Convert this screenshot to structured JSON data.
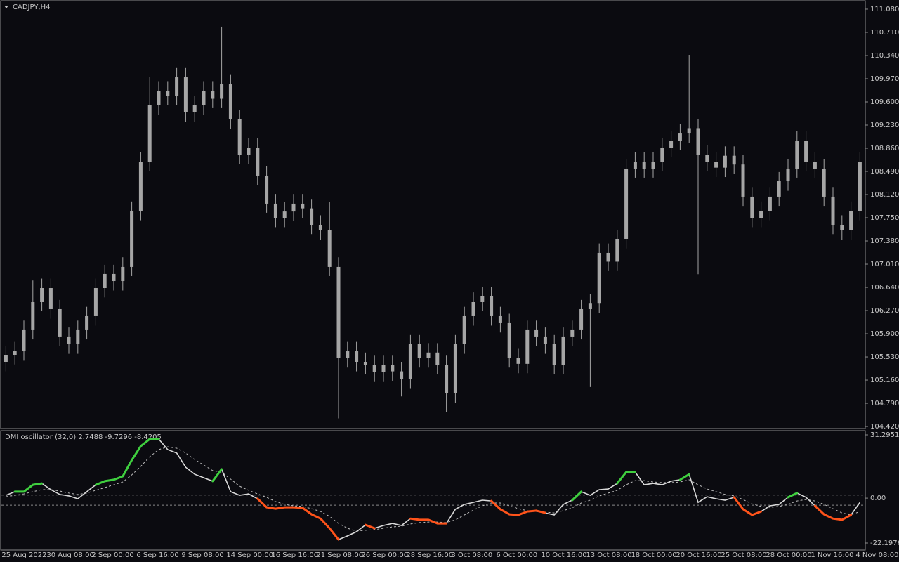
{
  "chart_data": [
    {
      "type": "candlestick",
      "title": "CADJPY,H4",
      "color": "#a6a6a6",
      "categories": [
        "25 Aug 2022",
        null,
        null,
        null,
        null,
        "30 Aug 08:00",
        null,
        null,
        null,
        null,
        "2 Sep 00:00",
        null,
        null,
        null,
        null,
        "6 Sep 16:00",
        null,
        null,
        null,
        null,
        "9 Sep 08:00",
        null,
        null,
        null,
        null,
        "14 Sep 00:00",
        null,
        null,
        null,
        null,
        "16 Sep 16:00",
        null,
        null,
        null,
        null,
        "21 Sep 08:00",
        null,
        null,
        null,
        null,
        "26 Sep 00:00",
        null,
        null,
        null,
        null,
        "28 Sep 16:00",
        null,
        null,
        null,
        null,
        "3 Oct 08:00",
        null,
        null,
        null,
        null,
        "6 Oct 00:00",
        null,
        null,
        null,
        null,
        "10 Oct 16:00",
        null,
        null,
        null,
        null,
        "13 Oct 08:00",
        null,
        null,
        null,
        null,
        "18 Oct 00:00",
        null,
        null,
        null,
        null,
        "20 Oct 16:00",
        null,
        null,
        null,
        null,
        "25 Oct 08:00",
        null,
        null,
        null,
        null,
        "28 Oct 00:00",
        null,
        null,
        null,
        null,
        "1 Nov 16:00",
        null,
        null,
        null,
        null,
        "4 Nov 08:00"
      ],
      "open": [
        105.45,
        105.564,
        105.62,
        105.957,
        106.405,
        106.629,
        106.293,
        105.845,
        105.733,
        105.957,
        106.181,
        106.629,
        106.854,
        106.741,
        106.966,
        107.862,
        108.647,
        109.544,
        109.768,
        109.7,
        109.992,
        109.432,
        109.544,
        109.768,
        109.65,
        109.88,
        109.32,
        108.759,
        108.871,
        108.423,
        107.975,
        107.75,
        107.85,
        107.975,
        107.9,
        107.638,
        107.55,
        106.966,
        105.508,
        105.62,
        105.45,
        105.396,
        105.284,
        105.396,
        105.3,
        105.172,
        105.733,
        105.508,
        105.6,
        105.4,
        104.948,
        105.733,
        106.181,
        106.405,
        106.5,
        106.181,
        106.069,
        105.508,
        105.42,
        105.957,
        105.845,
        105.733,
        105.396,
        105.845,
        105.957,
        106.293,
        106.38,
        107.19,
        107.05,
        107.414,
        108.535,
        108.647,
        108.535,
        108.647,
        108.871,
        108.983,
        109.095,
        109.18,
        108.759,
        108.647,
        108.55,
        108.74,
        108.6,
        108.087,
        107.75,
        107.862,
        108.087,
        108.333,
        108.535,
        108.983,
        108.647,
        108.535,
        108.087,
        107.638,
        107.549,
        107.862
      ],
      "high": [
        105.71,
        105.77,
        106.11,
        106.75,
        106.78,
        106.78,
        106.44,
        106.0,
        106.11,
        106.33,
        106.78,
        107.0,
        107.0,
        107.12,
        108.01,
        108.8,
        110.0,
        109.92,
        109.92,
        110.14,
        110.14,
        109.69,
        109.92,
        109.92,
        110.8,
        110.03,
        109.47,
        109.02,
        109.02,
        108.57,
        108.13,
        108.0,
        108.13,
        108.13,
        108.05,
        107.79,
        108.0,
        107.12,
        105.77,
        105.77,
        105.6,
        105.55,
        105.55,
        105.55,
        105.45,
        105.88,
        105.88,
        105.75,
        105.75,
        105.55,
        105.88,
        106.33,
        106.56,
        106.65,
        106.65,
        106.33,
        106.22,
        105.66,
        106.11,
        106.11,
        106.0,
        105.88,
        106.0,
        106.11,
        106.44,
        106.53,
        107.34,
        107.34,
        107.56,
        108.69,
        108.8,
        108.8,
        108.8,
        109.02,
        109.13,
        109.25,
        110.35,
        109.33,
        108.91,
        108.8,
        108.89,
        108.89,
        108.75,
        108.24,
        108.01,
        108.24,
        108.48,
        108.69,
        109.13,
        109.13,
        108.8,
        108.69,
        108.24,
        107.79,
        108.01,
        108.8
      ],
      "low": [
        105.3,
        105.41,
        105.47,
        105.81,
        106.26,
        106.14,
        105.7,
        105.58,
        105.58,
        105.81,
        106.03,
        106.48,
        106.59,
        106.59,
        106.82,
        107.71,
        108.5,
        109.39,
        109.55,
        109.55,
        109.28,
        109.28,
        109.39,
        109.5,
        109.5,
        109.17,
        108.61,
        108.61,
        108.27,
        107.83,
        107.6,
        107.6,
        107.7,
        107.75,
        107.49,
        107.4,
        106.82,
        104.55,
        105.36,
        105.3,
        105.25,
        105.13,
        105.13,
        105.15,
        104.9,
        105.02,
        105.36,
        105.36,
        105.25,
        104.65,
        104.8,
        105.58,
        106.03,
        106.26,
        106.03,
        105.92,
        105.36,
        105.27,
        105.27,
        105.7,
        105.58,
        105.25,
        105.25,
        105.7,
        105.81,
        105.05,
        106.23,
        106.9,
        106.9,
        107.26,
        108.39,
        108.39,
        108.39,
        108.5,
        108.72,
        108.83,
        108.95,
        106.85,
        108.5,
        108.4,
        108.4,
        108.45,
        107.94,
        107.6,
        107.6,
        107.71,
        107.94,
        108.18,
        108.39,
        108.5,
        108.39,
        107.94,
        107.49,
        107.4,
        107.4,
        107.71
      ],
      "close": [
        105.564,
        105.62,
        105.957,
        106.405,
        106.629,
        106.293,
        105.845,
        105.733,
        105.957,
        106.181,
        106.629,
        106.854,
        106.741,
        106.966,
        107.862,
        108.647,
        109.544,
        109.768,
        109.7,
        109.992,
        109.432,
        109.544,
        109.768,
        109.65,
        109.88,
        109.32,
        108.759,
        108.871,
        108.423,
        107.975,
        107.75,
        107.85,
        107.975,
        107.9,
        107.638,
        107.55,
        106.966,
        105.508,
        105.62,
        105.45,
        105.396,
        105.284,
        105.396,
        105.3,
        105.172,
        105.733,
        105.508,
        105.6,
        105.4,
        104.948,
        105.733,
        106.181,
        106.405,
        106.5,
        106.181,
        106.069,
        105.508,
        105.42,
        105.957,
        105.845,
        105.733,
        105.396,
        105.845,
        105.957,
        106.293,
        106.38,
        107.19,
        107.05,
        107.414,
        108.535,
        108.647,
        108.535,
        108.647,
        108.871,
        108.983,
        109.095,
        109.18,
        108.759,
        108.647,
        108.55,
        108.74,
        108.6,
        108.087,
        107.75,
        107.862,
        108.087,
        108.333,
        108.535,
        108.983,
        108.647,
        108.535,
        108.087,
        107.638,
        107.549,
        107.862,
        108.647
      ],
      "ylim": [
        104.387,
        111.203
      ],
      "yticks": [
        {
          "value": 104.42,
          "label": "104.420"
        },
        {
          "value": 104.79,
          "label": "104.790"
        },
        {
          "value": 105.16,
          "label": "105.160"
        },
        {
          "value": 105.53,
          "label": "105.530"
        },
        {
          "value": 105.9,
          "label": "105.900"
        },
        {
          "value": 106.27,
          "label": "106.270"
        },
        {
          "value": 106.64,
          "label": "106.640"
        },
        {
          "value": 107.01,
          "label": "107.010"
        },
        {
          "value": 107.38,
          "label": "107.380"
        },
        {
          "value": 107.75,
          "label": "107.750"
        },
        {
          "value": 108.12,
          "label": "108.120"
        },
        {
          "value": 108.49,
          "label": "108.490"
        },
        {
          "value": 108.86,
          "label": "108.860"
        },
        {
          "value": 109.23,
          "label": "109.230"
        },
        {
          "value": 109.6,
          "label": "109.600"
        },
        {
          "value": 109.97,
          "label": "109.970"
        },
        {
          "value": 110.34,
          "label": "110.340"
        },
        {
          "value": 110.71,
          "label": "110.710"
        },
        {
          "value": 111.08,
          "label": "111.080"
        }
      ]
    },
    {
      "type": "line",
      "title": "DMI oscillator (32,0) 2.7488 -9.7296 -8.4205",
      "color": "#d9d9d9",
      "signal_color": "#bdbdbd",
      "values": [
        1.4,
        3.2,
        3.2,
        6.6,
        7.3,
        4.2,
        1.8,
        1.1,
        -0.3,
        3.2,
        6.6,
        8.4,
        9.1,
        10.8,
        18.8,
        25.7,
        29.2,
        29.2,
        24.0,
        22.3,
        15.3,
        11.8,
        10.1,
        8.4,
        14.3,
        3.2,
        1.4,
        2.1,
        -0.3,
        -4.5,
        -5.2,
        -4.5,
        -4.5,
        -4.8,
        -8.0,
        -10.1,
        -14.9,
        -20.5,
        -18.7,
        -16.6,
        -13.2,
        -14.9,
        -13.5,
        -12.5,
        -13.5,
        -10.1,
        -10.7,
        -10.7,
        -12.5,
        -12.5,
        -5.5,
        -3.1,
        -2.1,
        -1.0,
        -1.4,
        -5.5,
        -8.0,
        -8.3,
        -6.6,
        -6.2,
        -7.3,
        -8.3,
        -3.1,
        -1.0,
        3.2,
        1.4,
        4.2,
        4.5,
        7.3,
        12.9,
        12.9,
        6.6,
        7.3,
        6.6,
        8.4,
        9.1,
        11.8,
        -2.1,
        0.7,
        -0.3,
        -1.0,
        0.4,
        -5.5,
        -8.3,
        -6.6,
        -3.8,
        -3.1,
        0.4,
        2.5,
        0.4,
        -3.8,
        -8.0,
        -10.1,
        -10.7,
        -8.3,
        -2.1
      ],
      "signal": [
        0.7,
        1.4,
        2.1,
        3.2,
        4.2,
        4.2,
        3.5,
        2.5,
        1.8,
        2.5,
        3.9,
        5.2,
        6.6,
        8.0,
        11.5,
        15.7,
        20.5,
        24.0,
        25.4,
        24.7,
        22.3,
        19.1,
        16.4,
        13.6,
        12.9,
        9.4,
        5.9,
        3.9,
        2.1,
        0.4,
        -1.7,
        -3.1,
        -3.8,
        -4.1,
        -5.2,
        -6.6,
        -9.0,
        -12.5,
        -14.9,
        -16.3,
        -15.9,
        -15.6,
        -14.9,
        -14.2,
        -13.9,
        -12.8,
        -12.1,
        -11.8,
        -11.8,
        -12.1,
        -10.7,
        -8.3,
        -5.9,
        -3.8,
        -2.4,
        -2.4,
        -3.8,
        -5.2,
        -6.2,
        -6.6,
        -6.9,
        -7.3,
        -6.2,
        -4.8,
        -2.4,
        -1.0,
        1.1,
        2.5,
        3.9,
        6.6,
        8.7,
        8.7,
        8.0,
        7.7,
        7.7,
        8.0,
        9.1,
        6.6,
        4.5,
        3.2,
        1.8,
        1.1,
        -0.7,
        -2.8,
        -4.1,
        -4.5,
        -4.1,
        -3.1,
        -1.4,
        -0.7,
        -1.4,
        -3.1,
        -5.2,
        -7.3,
        -8.3,
        -6.6
      ],
      "highlights": [
        {
          "color": "#3fcf3f",
          "values": [
            null,
            3.2,
            3.2,
            6.6,
            7.3,
            null,
            null,
            null,
            null,
            null,
            6.6,
            8.4,
            9.1,
            10.8,
            18.8,
            25.7,
            29.2,
            29.2,
            null,
            null,
            null,
            null,
            null,
            8.4,
            14.3,
            null,
            null,
            null,
            null,
            null,
            null,
            null,
            null,
            null,
            null,
            null,
            null,
            null,
            null,
            null,
            null,
            null,
            null,
            null,
            null,
            null,
            null,
            null,
            null,
            null,
            null,
            null,
            null,
            null,
            null,
            null,
            null,
            null,
            null,
            null,
            null,
            null,
            null,
            -1.0,
            3.2,
            null,
            null,
            null,
            7.3,
            12.9,
            12.9,
            null,
            null,
            null,
            null,
            9.1,
            11.8,
            null,
            null,
            null,
            null,
            null,
            null,
            null,
            null,
            null,
            null,
            0.4,
            2.5,
            null,
            null,
            null,
            null,
            null,
            null,
            null
          ]
        },
        {
          "color": "#ff531a",
          "values": [
            null,
            null,
            null,
            null,
            null,
            null,
            null,
            null,
            null,
            null,
            null,
            null,
            null,
            null,
            null,
            null,
            null,
            null,
            null,
            null,
            null,
            null,
            null,
            null,
            null,
            null,
            null,
            null,
            -0.3,
            -4.5,
            -5.2,
            -4.5,
            -4.5,
            -4.8,
            -8.0,
            -10.1,
            -14.9,
            -20.5,
            null,
            null,
            -13.2,
            -14.9,
            null,
            null,
            null,
            -10.1,
            -10.7,
            -10.7,
            -12.5,
            -12.5,
            null,
            null,
            null,
            null,
            -1.4,
            -5.5,
            -8.0,
            -8.3,
            -6.6,
            -6.2,
            -7.3,
            null,
            null,
            null,
            null,
            null,
            null,
            null,
            null,
            null,
            null,
            null,
            null,
            null,
            null,
            null,
            null,
            null,
            null,
            null,
            null,
            0.4,
            -5.5,
            -8.3,
            -6.6,
            null,
            null,
            null,
            null,
            null,
            -3.8,
            -8.0,
            -10.1,
            -10.7,
            -8.3,
            null
          ]
        }
      ],
      "levels": [
        1.5,
        -3.5
      ],
      "ylim": [
        -25.67,
        33.38
      ],
      "yticks": [
        31.2951,
        {
          "value": 0,
          "label": "0.00"
        },
        -22.1976
      ]
    }
  ]
}
